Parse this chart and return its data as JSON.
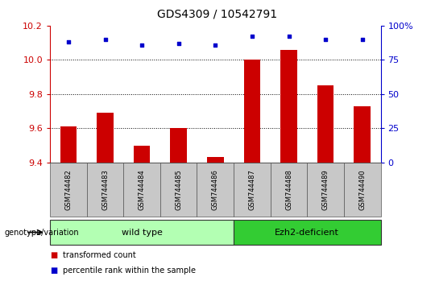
{
  "title": "GDS4309 / 10542791",
  "samples": [
    "GSM744482",
    "GSM744483",
    "GSM744484",
    "GSM744485",
    "GSM744486",
    "GSM744487",
    "GSM744488",
    "GSM744489",
    "GSM744490"
  ],
  "transformed_count": [
    9.61,
    9.69,
    9.5,
    9.6,
    9.43,
    10.0,
    10.06,
    9.85,
    9.73
  ],
  "percentile_rank": [
    88,
    90,
    86,
    87,
    86,
    92,
    92,
    90,
    90
  ],
  "ylim_left": [
    9.4,
    10.2
  ],
  "ylim_right": [
    0,
    100
  ],
  "yticks_left": [
    9.4,
    9.6,
    9.8,
    10.0,
    10.2
  ],
  "yticks_right": [
    0,
    25,
    50,
    75,
    100
  ],
  "bar_color": "#cc0000",
  "dot_color": "#0000cc",
  "wt_count": 5,
  "ezh2_count": 4,
  "wild_type_label": "wild type",
  "ezh2_label": "Ezh2-deficient",
  "genotype_label": "genotype/variation",
  "legend_count_label": "transformed count",
  "legend_pct_label": "percentile rank within the sample",
  "bg_color": "#ffffff",
  "tick_label_bg": "#c8c8c8",
  "wt_group_color": "#b3ffb3",
  "ezh2_group_color": "#33cc33",
  "title_fontsize": 10,
  "axis_label_fontsize": 8,
  "tick_fontsize": 8,
  "sample_fontsize": 6,
  "legend_fontsize": 7,
  "group_label_fontsize": 8
}
